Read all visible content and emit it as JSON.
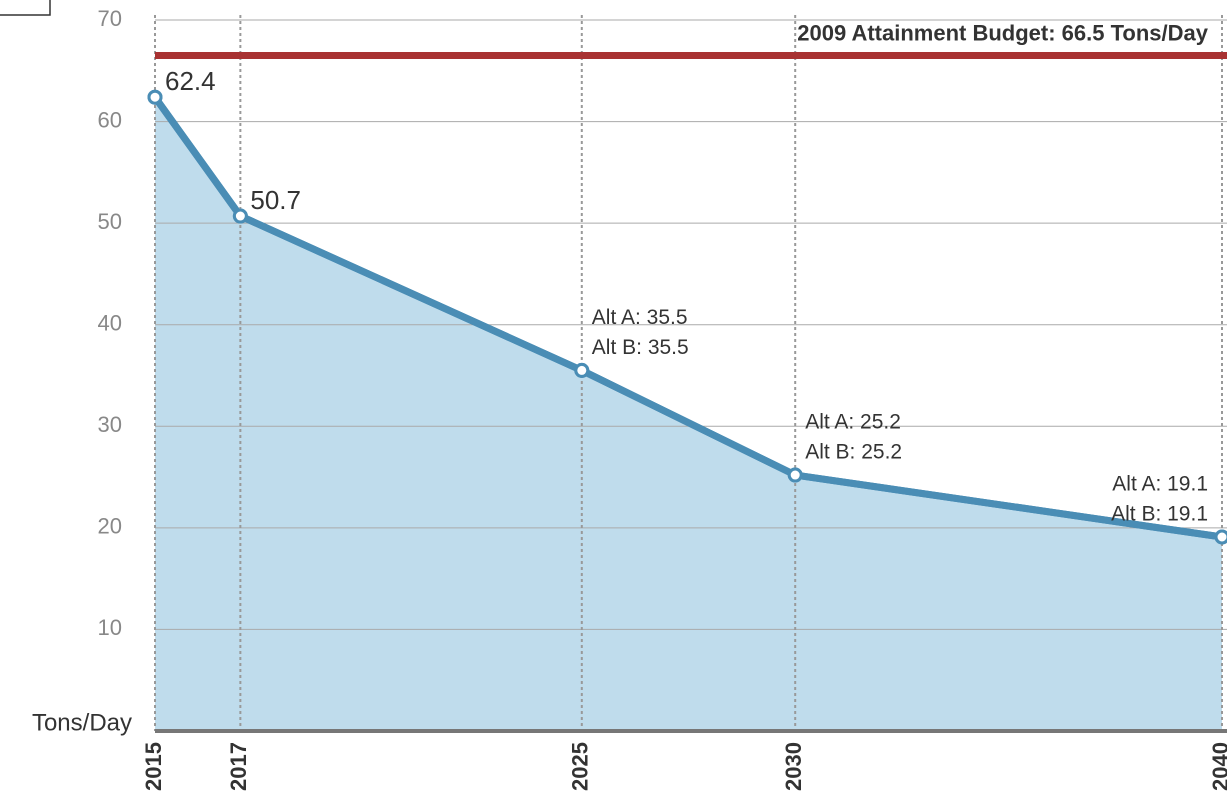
{
  "chart_data": {
    "type": "area",
    "y_label": "Tons/Day",
    "x": [
      2015,
      2017,
      2025,
      2030,
      2040
    ],
    "xlim": [
      2015,
      2040
    ],
    "xticks": [
      2015,
      2017,
      2025,
      2030,
      2040
    ],
    "ylim": [
      0,
      70
    ],
    "yticks": [
      10,
      20,
      30,
      40,
      50,
      60,
      70
    ],
    "grid": true,
    "fill_color": "#bfdcec",
    "series": [
      {
        "name": "Alt A",
        "color": "#4a8db5",
        "values": [
          62.4,
          50.7,
          35.5,
          25.2,
          19.1
        ],
        "value_labels": [
          "62.4",
          "50.7",
          "Alt A: 35.5",
          "Alt A: 25.2",
          "Alt A: 19.1"
        ]
      },
      {
        "name": "Alt B",
        "color": "#4a8db5",
        "values": [
          62.4,
          50.7,
          35.5,
          25.2,
          19.1
        ],
        "value_labels": [
          null,
          null,
          "Alt B: 35.5",
          "Alt B: 25.2",
          "Alt B: 19.1"
        ]
      }
    ],
    "reference_line": {
      "value": 66.5,
      "label": "2009 Attainment Budget: 66.5 Tons/Day",
      "color": "#a83232"
    }
  }
}
